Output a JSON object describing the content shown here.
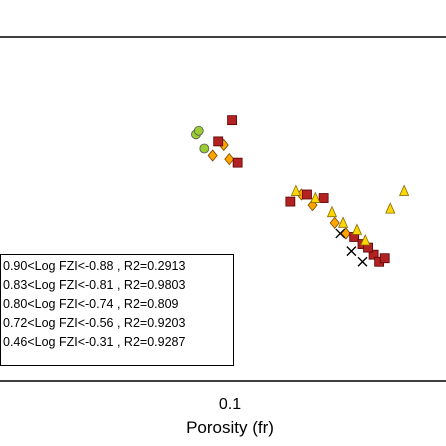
{
  "chart_data": {
    "type": "scatter",
    "xlabel": "Porosity (fr)",
    "ylabel": "",
    "x_ticks": [
      "0.1"
    ],
    "legend_placement": "bottom-left",
    "series": [
      {
        "name": "0.90<Log FZI<-0.88 , R2=0.2913",
        "marker": "circle",
        "color": "#9acd32",
        "points": [
          [
            0.04,
            1.22
          ],
          [
            0.043,
            1.18
          ],
          [
            0.041,
            1.23
          ]
        ]
      },
      {
        "name": "0.83<Log FZI<-0.81 , R2=0.9803",
        "marker": "diamond",
        "color": "#ffa500",
        "points": [
          [
            0.046,
            1.16
          ],
          [
            0.05,
            1.19
          ],
          [
            0.052,
            1.15
          ],
          [
            0.078,
            1.05
          ],
          [
            0.082,
            1.02
          ],
          [
            0.09,
            0.97
          ],
          [
            0.094,
            0.94
          ]
        ]
      },
      {
        "name": "0.80<Log FZI<-0.74 , R2=0.809",
        "marker": "square",
        "color": "#b22222",
        "points": [
          [
            0.053,
            1.26
          ],
          [
            0.048,
            1.2
          ],
          [
            0.055,
            1.14
          ],
          [
            0.074,
            1.03
          ],
          [
            0.08,
            1.05
          ],
          [
            0.086,
            1.04
          ],
          [
            0.097,
            0.93
          ],
          [
            0.1,
            0.91
          ],
          [
            0.104,
            0.88
          ],
          [
            0.106,
            0.86
          ],
          [
            0.102,
            0.9
          ],
          [
            0.108,
            0.87
          ]
        ]
      },
      {
        "name": "0.72<Log FZI<-0.56 , R2=0.9203",
        "marker": "triangle",
        "color": "#ffd700",
        "points": [
          [
            0.076,
            1.06
          ],
          [
            0.083,
            1.04
          ],
          [
            0.089,
            1.0
          ],
          [
            0.093,
            0.97
          ],
          [
            0.098,
            0.95
          ],
          [
            0.115,
            1.06
          ],
          [
            0.11,
            1.01
          ],
          [
            0.101,
            0.92
          ]
        ]
      },
      {
        "name": "0.46<Log FZI<-0.31 , R2=0.9287",
        "marker": "x",
        "color": "#000000",
        "points": [
          [
            0.1,
            0.86
          ],
          [
            0.096,
            0.89
          ],
          [
            0.092,
            0.94
          ]
        ]
      }
    ]
  }
}
